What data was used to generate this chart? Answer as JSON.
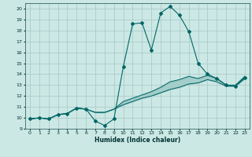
{
  "title": "",
  "xlabel": "Humidex (Indice chaleur)",
  "background_color": "#cce8e4",
  "grid_color": "#aacccc",
  "line_color": "#006666",
  "xlim": [
    -0.5,
    23.5
  ],
  "ylim": [
    9,
    20.5
  ],
  "xticks": [
    0,
    1,
    2,
    3,
    4,
    5,
    6,
    7,
    8,
    9,
    10,
    11,
    12,
    13,
    14,
    15,
    16,
    17,
    18,
    19,
    20,
    21,
    22,
    23
  ],
  "yticks": [
    9,
    10,
    11,
    12,
    13,
    14,
    15,
    16,
    17,
    18,
    19,
    20
  ],
  "line1_x": [
    0,
    1,
    2,
    3,
    4,
    5,
    6,
    7,
    8,
    9,
    10,
    11,
    12,
    13,
    14,
    15,
    16,
    17,
    18,
    19,
    20,
    21,
    22,
    23
  ],
  "line1_y": [
    9.9,
    10.0,
    9.9,
    10.3,
    10.4,
    10.9,
    10.8,
    9.7,
    9.3,
    9.9,
    14.7,
    18.6,
    18.7,
    16.2,
    19.6,
    20.2,
    19.4,
    17.9,
    15.0,
    14.0,
    13.6,
    13.0,
    12.9,
    13.7
  ],
  "line2_x": [
    0,
    1,
    2,
    3,
    4,
    5,
    6,
    7,
    8,
    9,
    10,
    11,
    12,
    13,
    14,
    15,
    16,
    17,
    18,
    19,
    20,
    21,
    22,
    23
  ],
  "line2_y": [
    9.9,
    10.0,
    9.9,
    10.3,
    10.4,
    10.9,
    10.8,
    10.5,
    10.5,
    10.8,
    11.5,
    11.8,
    12.1,
    12.4,
    12.8,
    13.3,
    13.5,
    13.8,
    13.6,
    13.9,
    13.6,
    13.0,
    13.0,
    13.8
  ],
  "line3_x": [
    0,
    1,
    2,
    3,
    4,
    5,
    6,
    7,
    8,
    9,
    10,
    11,
    12,
    13,
    14,
    15,
    16,
    17,
    18,
    19,
    20,
    21,
    22,
    23
  ],
  "line3_y": [
    9.9,
    10.0,
    9.9,
    10.3,
    10.4,
    10.9,
    10.8,
    10.5,
    10.5,
    10.8,
    11.2,
    11.5,
    11.8,
    12.0,
    12.3,
    12.6,
    12.8,
    13.1,
    13.2,
    13.5,
    13.3,
    12.9,
    12.9,
    13.6
  ]
}
